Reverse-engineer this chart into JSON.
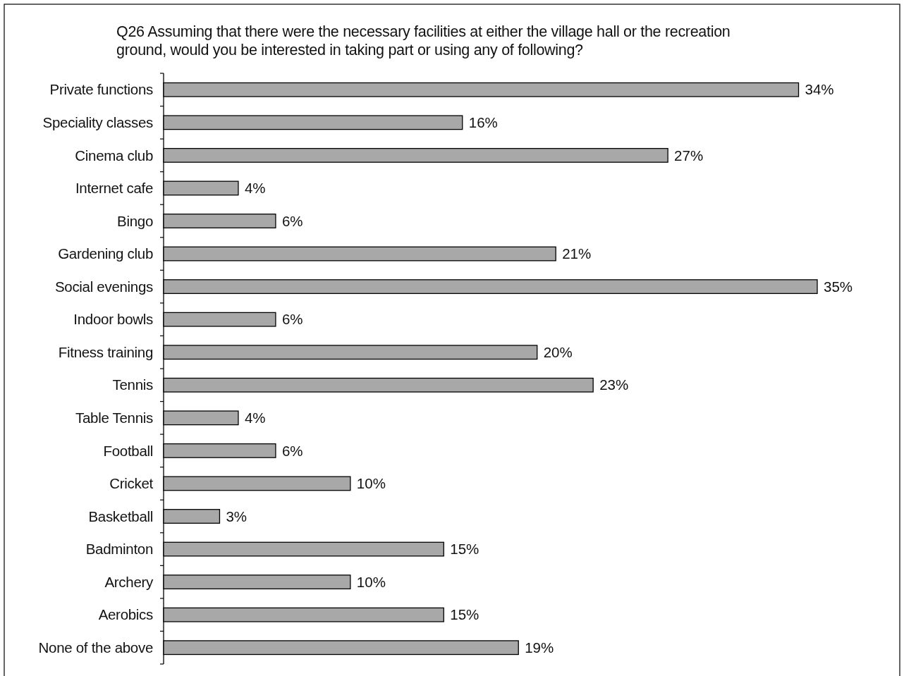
{
  "chart_data": {
    "type": "bar",
    "orientation": "horizontal",
    "title": "Q26 Assuming that there were the necessary facilities at either the village hall or the recreation\nground, would you be interested in taking part or using any of following?",
    "categories": [
      "Private functions",
      "Speciality classes",
      "Cinema club",
      "Internet cafe",
      "Bingo",
      "Gardening club",
      "Social evenings",
      "Indoor bowls",
      "Fitness training",
      "Tennis",
      "Table Tennis",
      "Football",
      "Cricket",
      "Basketball",
      "Badminton",
      "Archery",
      "Aerobics",
      "None of the above"
    ],
    "values": [
      34,
      16,
      27,
      4,
      6,
      21,
      35,
      6,
      20,
      23,
      4,
      6,
      10,
      3,
      15,
      10,
      15,
      19
    ],
    "value_labels": [
      "34%",
      "16%",
      "27%",
      "4%",
      "6%",
      "21%",
      "35%",
      "6%",
      "20%",
      "23%",
      "4%",
      "6%",
      "10%",
      "3%",
      "15%",
      "10%",
      "15%",
      "19%"
    ],
    "color": "#a8a8a8"
  }
}
